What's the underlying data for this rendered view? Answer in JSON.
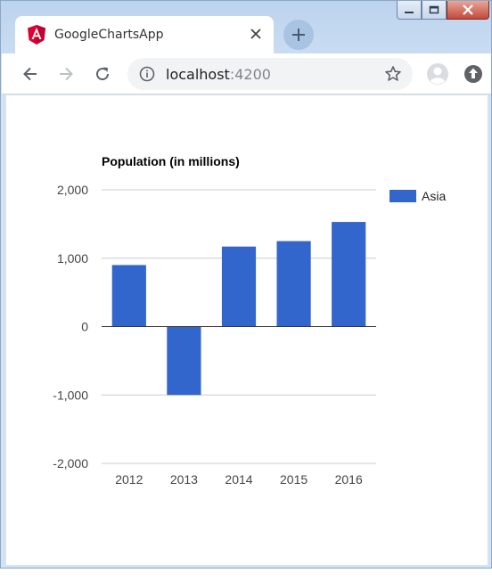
{
  "browser": {
    "tab_title": "GoogleChartsApp",
    "url_host": "localhost",
    "url_port": ":4200",
    "icons": {
      "favicon": "angular-icon",
      "tab_close": "close-icon",
      "new_tab": "plus-icon",
      "back": "arrow-left-icon",
      "forward": "arrow-right-icon",
      "reload": "reload-icon",
      "info": "info-icon",
      "bookmark": "star-icon",
      "profile": "profile-icon",
      "update": "update-icon"
    }
  },
  "colors": {
    "bar": "#3366cc",
    "favicon": "#dd0031",
    "gridline": "#cccccc",
    "baseline": "#333333"
  },
  "chart_data": {
    "type": "bar",
    "title": "Population (in millions)",
    "categories": [
      "2012",
      "2013",
      "2014",
      "2015",
      "2016"
    ],
    "series": [
      {
        "name": "Asia",
        "values": [
          900,
          -1000,
          1170,
          1250,
          1530
        ]
      }
    ],
    "ylim": [
      -2000,
      2000
    ],
    "yticks": [
      2000,
      1000,
      0,
      -1000,
      -2000
    ],
    "ytick_labels": [
      "2,000",
      "1,000",
      "0",
      "-1,000",
      "-2,000"
    ],
    "grid": true,
    "legend_position": "right"
  }
}
